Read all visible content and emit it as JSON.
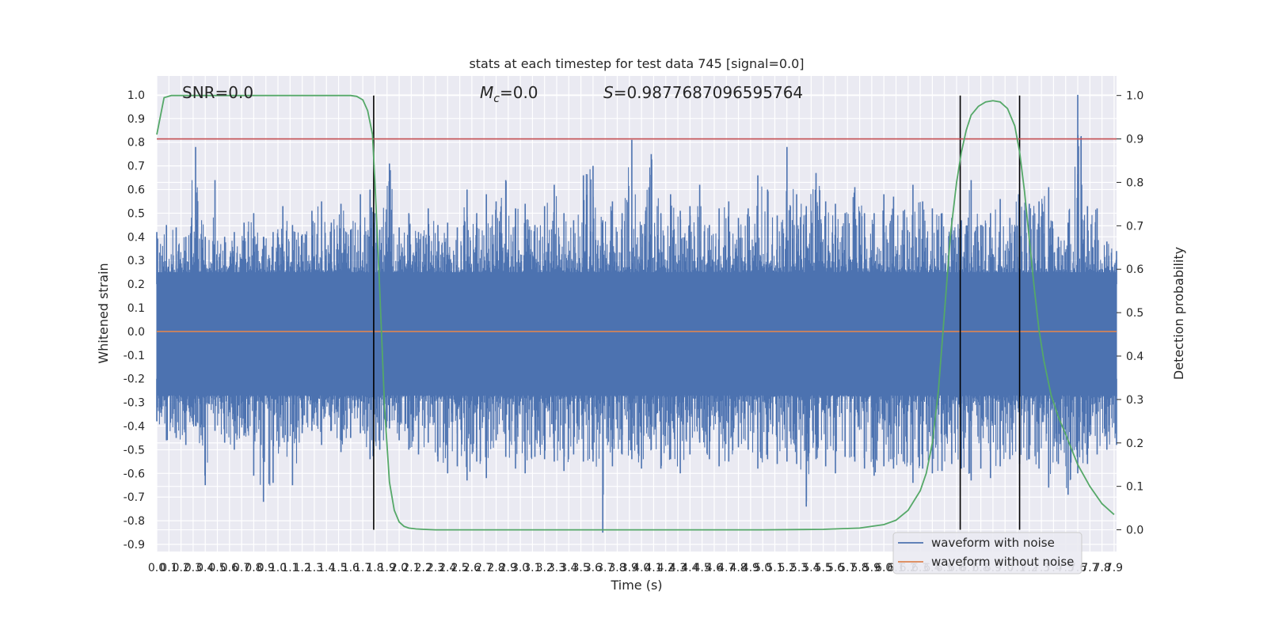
{
  "chart_data": {
    "type": "line",
    "title": "stats at each timestep for test data 745 [signal=0.0]",
    "xlabel": "Time (s)",
    "ylabel_left": "Whitened strain",
    "ylabel_right": "Detection probability",
    "annotations": {
      "snr": "SNR=0.0",
      "mc_symbol": "M",
      "mc_subscript": "c",
      "mc_value": "=0.0",
      "s_symbol": "S",
      "s_value": "=0.9877687096595764"
    },
    "xlim": [
      0.0,
      7.92
    ],
    "ylim_left": [
      -0.93,
      1.08
    ],
    "ylim_right": [
      -0.05,
      1.045
    ],
    "x_ticks": [
      "0.0",
      "0.1",
      "0.2",
      "0.3",
      "0.4",
      "0.5",
      "0.6",
      "0.7",
      "0.8",
      "0.9",
      "1.0",
      "1.1",
      "1.2",
      "1.3",
      "1.4",
      "1.5",
      "1.6",
      "1.7",
      "1.8",
      "1.9",
      "2.0",
      "2.1",
      "2.2",
      "2.3",
      "2.4",
      "2.5",
      "2.6",
      "2.7",
      "2.8",
      "2.9",
      "3.0",
      "3.1",
      "3.2",
      "3.3",
      "3.4",
      "3.5",
      "3.6",
      "3.7",
      "3.8",
      "3.9",
      "4.0",
      "4.1",
      "4.2",
      "4.3",
      "4.4",
      "4.5",
      "4.6",
      "4.7",
      "4.8",
      "4.9",
      "5.0",
      "5.1",
      "5.2",
      "5.3",
      "5.4",
      "5.5",
      "5.6",
      "5.7",
      "5.8",
      "5.9",
      "6.0",
      "6.1",
      "6.2",
      "6.3",
      "6.4",
      "6.5",
      "6.6",
      "6.7",
      "6.8",
      "6.9",
      "7.0",
      "7.1",
      "7.2",
      "7.3",
      "7.4",
      "7.5",
      "7.6",
      "7.7",
      "7.8",
      "7.9"
    ],
    "y_ticks_left": [
      "1.0",
      "0.9",
      "0.8",
      "0.7",
      "0.6",
      "0.5",
      "0.4",
      "0.3",
      "0.2",
      "0.1",
      "0.0",
      "-0.1",
      "-0.2",
      "-0.3",
      "-0.4",
      "-0.5",
      "-0.6",
      "-0.7",
      "-0.8",
      "-0.9"
    ],
    "y_ticks_right": [
      "1.0",
      "0.9",
      "0.8",
      "0.7",
      "0.6",
      "0.5",
      "0.4",
      "0.3",
      "0.2",
      "0.1",
      "0.0"
    ],
    "series": [
      {
        "name": "waveform with noise",
        "color": "#4c72b0",
        "envelope_upper": [
          0.42,
          0.45,
          0.44,
          0.4,
          0.78,
          0.4,
          0.64,
          0.4,
          0.42,
          0.46,
          0.5,
          0.4,
          0.42,
          0.53,
          0.45,
          0.41,
          0.51,
          0.55,
          0.46,
          0.54,
          0.43,
          0.58,
          0.6,
          0.43,
          0.71,
          0.44,
          0.5,
          0.42,
          0.52,
          0.45,
          0.46,
          0.44,
          0.6,
          0.5,
          0.58,
          0.55,
          0.64,
          0.52,
          0.54,
          0.45,
          0.53,
          0.62,
          0.5,
          0.47,
          0.66,
          0.7,
          0.47,
          0.55,
          0.5,
          0.81,
          0.45,
          0.75,
          0.5,
          0.58,
          0.51,
          0.53,
          0.62,
          0.45,
          0.52,
          0.55,
          0.48,
          0.52,
          0.66,
          0.6,
          0.49,
          0.78,
          0.58,
          0.53,
          0.67,
          0.55,
          0.54,
          0.5,
          0.61,
          0.5,
          0.5,
          0.58,
          0.57,
          0.51,
          0.62,
          0.55,
          0.52,
          0.5,
          0.48,
          0.47,
          0.64,
          0.45,
          0.5,
          0.56,
          0.48,
          0.6,
          0.54,
          0.55,
          0.61,
          0.4,
          0.46,
          1.0,
          0.53,
          0.52,
          0.38,
          0.34
        ],
        "envelope_lower": [
          -0.38,
          -0.46,
          -0.45,
          -0.48,
          -0.4,
          -0.65,
          -0.42,
          -0.47,
          -0.5,
          -0.44,
          -0.61,
          -0.72,
          -0.64,
          -0.45,
          -0.65,
          -0.43,
          -0.42,
          -0.48,
          -0.42,
          -0.51,
          -0.45,
          -0.43,
          -0.54,
          -0.5,
          -0.41,
          -0.46,
          -0.5,
          -0.52,
          -0.47,
          -0.55,
          -0.6,
          -0.57,
          -0.63,
          -0.55,
          -0.62,
          -0.46,
          -0.53,
          -0.58,
          -0.6,
          -0.53,
          -0.54,
          -0.55,
          -0.59,
          -0.52,
          -0.55,
          -0.55,
          -0.85,
          -0.57,
          -0.52,
          -0.54,
          -0.58,
          -0.5,
          -0.58,
          -0.54,
          -0.6,
          -0.52,
          -0.47,
          -0.54,
          -0.57,
          -0.55,
          -0.49,
          -0.5,
          -0.58,
          -0.54,
          -0.56,
          -0.55,
          -0.56,
          -0.74,
          -0.54,
          -0.57,
          -0.6,
          -0.53,
          -0.55,
          -0.58,
          -0.61,
          -0.57,
          -0.58,
          -0.55,
          -0.64,
          -0.58,
          -0.6,
          -0.59,
          -0.56,
          -0.58,
          -0.63,
          -0.58,
          -0.62,
          -0.57,
          -0.54,
          -0.56,
          -0.54,
          -0.58,
          -0.66,
          -0.56,
          -0.69,
          -0.6,
          -0.56,
          -0.52,
          -0.5,
          -0.48
        ]
      },
      {
        "name": "waveform without noise",
        "color": "#dd8452",
        "x": [
          0.0,
          7.92
        ],
        "y": [
          0.0,
          0.0
        ]
      },
      {
        "axis": "right",
        "color": "#55a868",
        "x": [
          0.0,
          0.06,
          0.12,
          0.2,
          0.4,
          0.8,
          1.2,
          1.6,
          1.65,
          1.7,
          1.74,
          1.78,
          1.8,
          1.84,
          1.88,
          1.92,
          1.96,
          2.0,
          2.04,
          2.08,
          2.14,
          2.2,
          2.3,
          2.6,
          3.0,
          4.0,
          5.0,
          5.5,
          5.8,
          6.0,
          6.1,
          6.2,
          6.3,
          6.35,
          6.4,
          6.45,
          6.5,
          6.55,
          6.6,
          6.64,
          6.68,
          6.72,
          6.78,
          6.84,
          6.9,
          6.96,
          7.02,
          7.08,
          7.12,
          7.16,
          7.2,
          7.24,
          7.28,
          7.32,
          7.38,
          7.44,
          7.5,
          7.6,
          7.7,
          7.8,
          7.9
        ],
        "y": [
          0.91,
          0.995,
          1.0,
          1.0,
          1.0,
          1.0,
          1.0,
          1.0,
          0.998,
          0.99,
          0.965,
          0.91,
          0.8,
          0.55,
          0.28,
          0.11,
          0.045,
          0.018,
          0.008,
          0.004,
          0.002,
          0.001,
          0.0,
          0.0,
          0.0,
          0.0,
          0.0,
          0.001,
          0.004,
          0.012,
          0.022,
          0.045,
          0.09,
          0.13,
          0.2,
          0.32,
          0.5,
          0.68,
          0.8,
          0.87,
          0.92,
          0.955,
          0.975,
          0.985,
          0.988,
          0.985,
          0.97,
          0.93,
          0.87,
          0.78,
          0.67,
          0.56,
          0.46,
          0.39,
          0.31,
          0.26,
          0.22,
          0.15,
          0.1,
          0.06,
          0.035
        ]
      }
    ],
    "threshold": {
      "axis": "right",
      "value": 0.9,
      "color": "#c44e52"
    },
    "event_markers_x": [
      1.79,
      6.63,
      7.12
    ],
    "legend": {
      "location": "lower right",
      "entries": [
        {
          "label": "waveform with noise",
          "color": "#4c72b0"
        },
        {
          "label": "waveform without noise",
          "color": "#dd8452"
        }
      ]
    },
    "grid": true,
    "background_color": "#eaeaf2"
  }
}
